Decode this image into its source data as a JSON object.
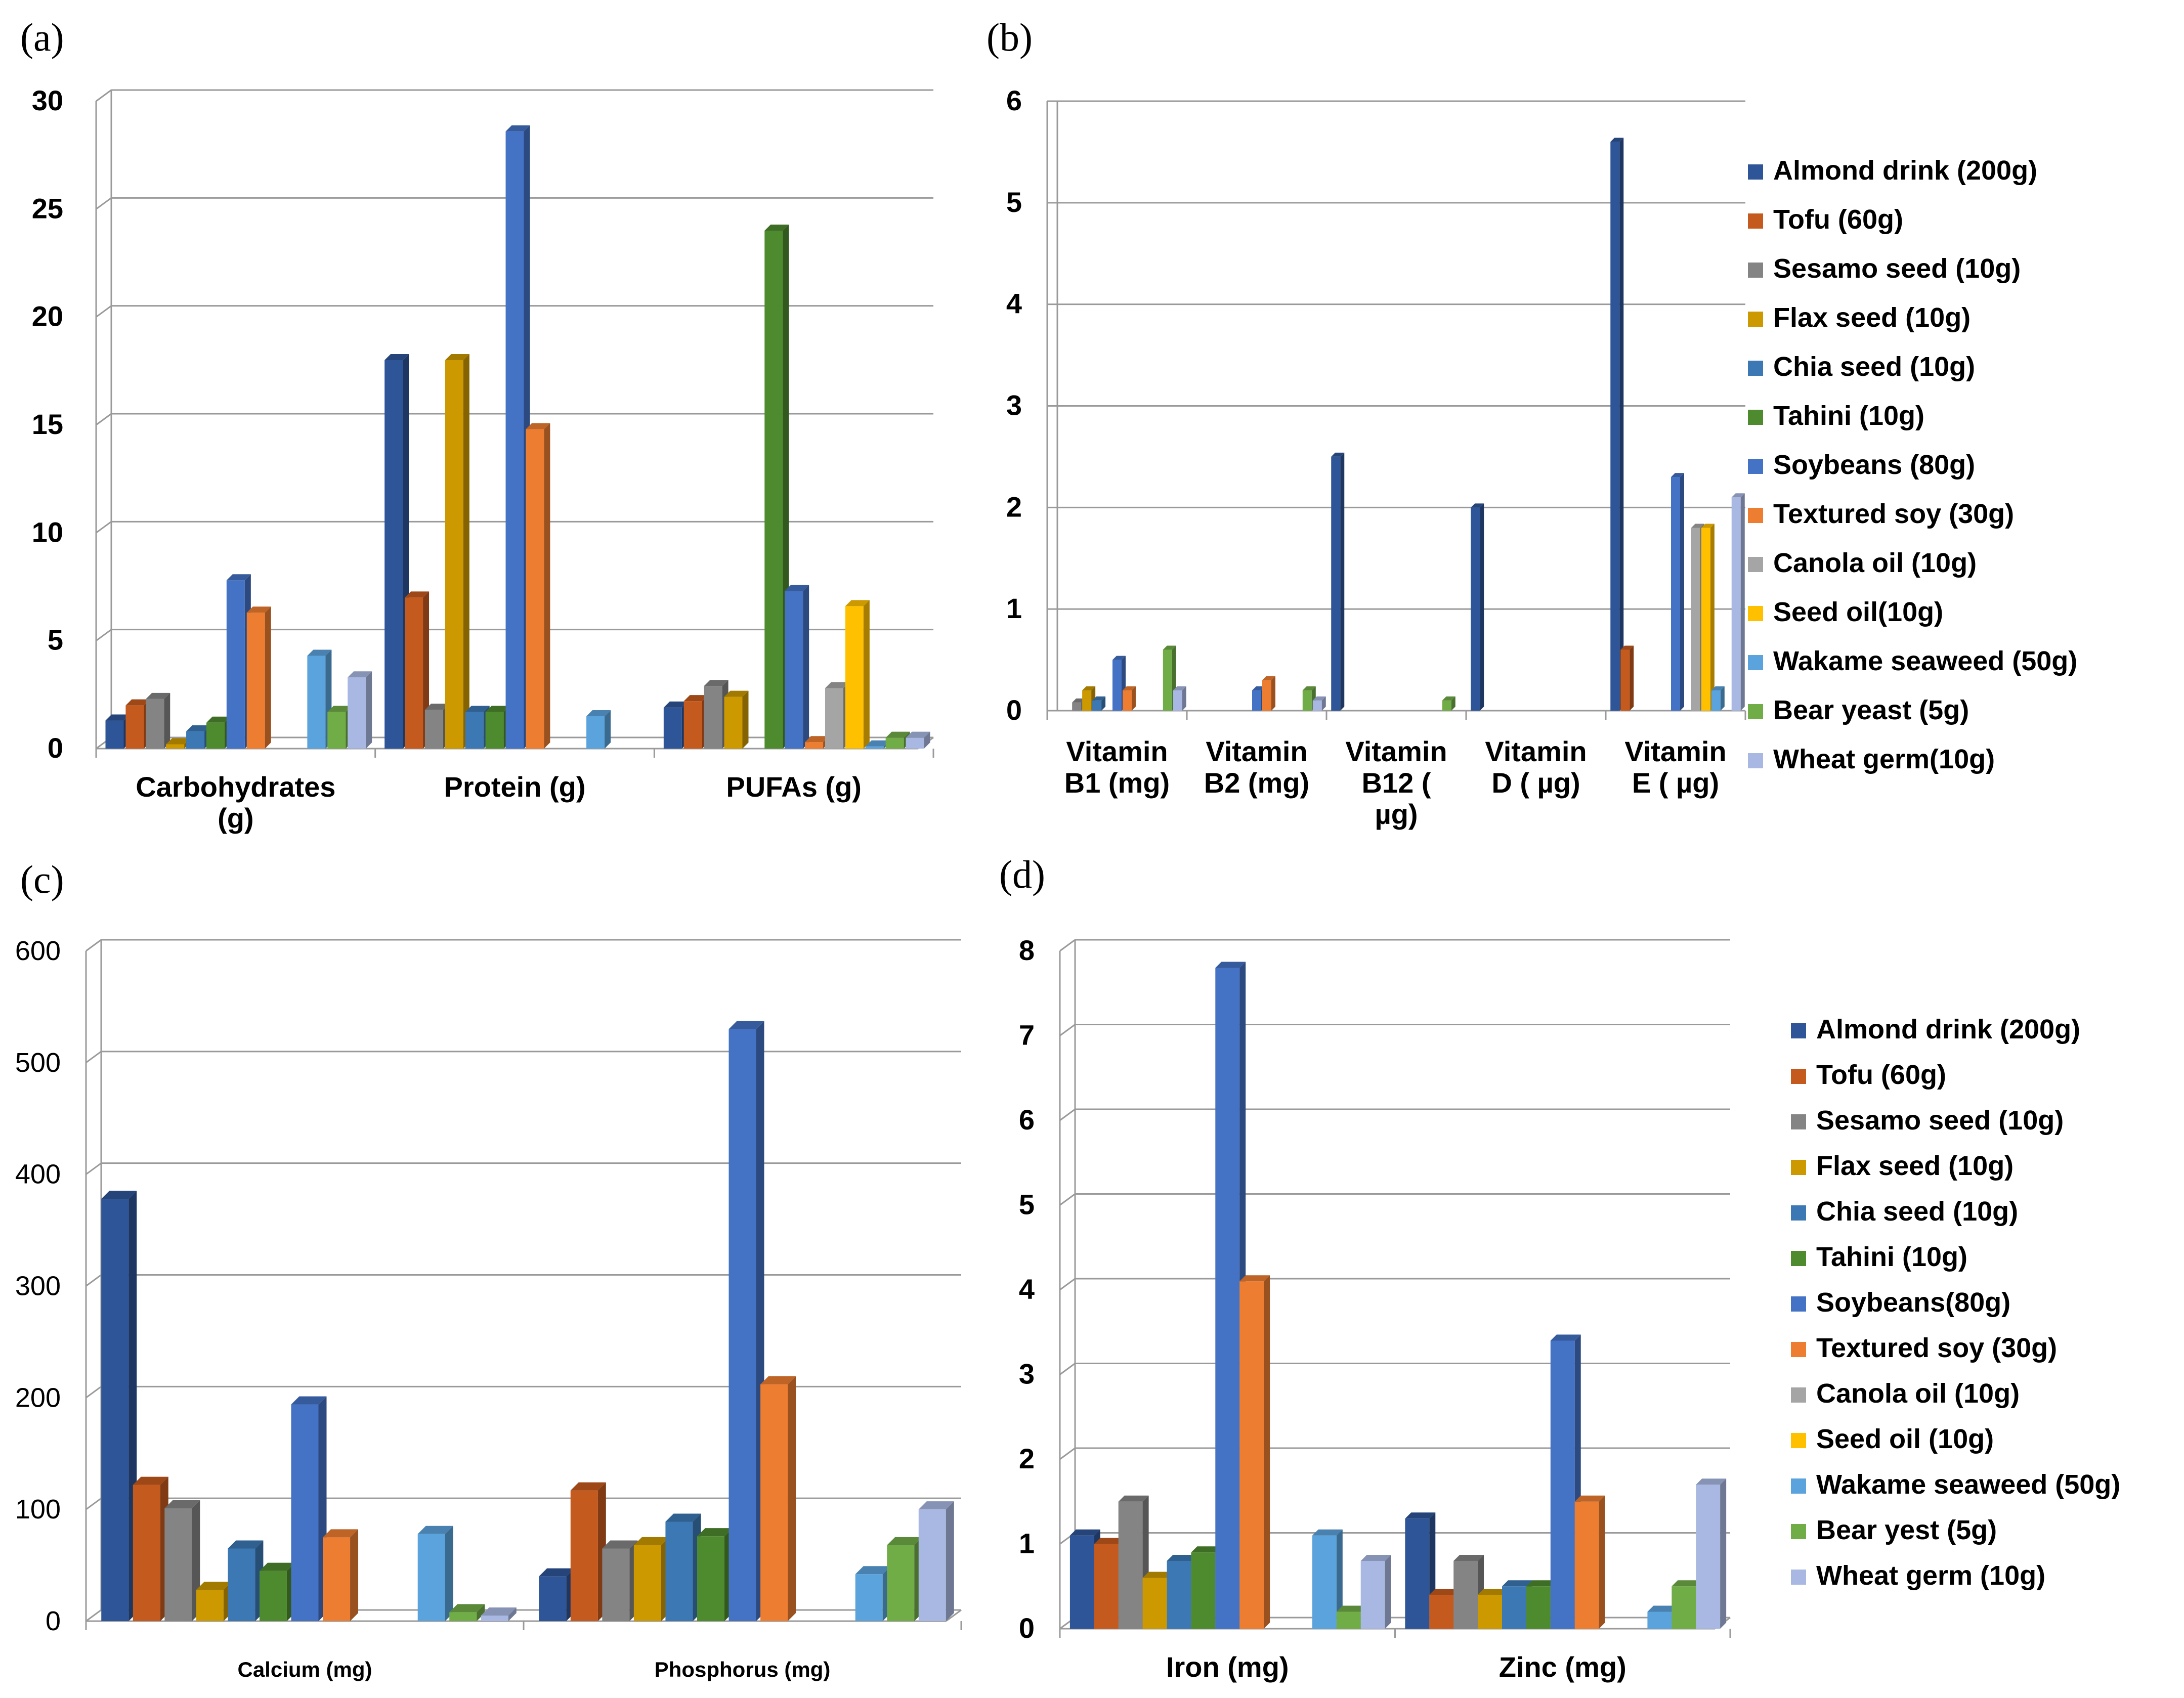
{
  "figure_labels": {
    "a": "(a)",
    "b": "(b)",
    "c": "(c)",
    "d": "(d)"
  },
  "legend_b": [
    "Almond drink (200g)",
    "Tofu (60g)",
    "Sesamo seed (10g)",
    "Flax seed (10g)",
    "Chia seed (10g)",
    "Tahini (10g)",
    "Soybeans (80g)",
    "Textured soy (30g)",
    "Canola oil (10g)",
    "Seed oil(10g)",
    "Wakame seaweed (50g)",
    "Bear yeast (5g)",
    "Wheat germ(10g)"
  ],
  "legend_d": [
    "Almond drink (200g)",
    "Tofu (60g)",
    "Sesamo seed (10g)",
    "Flax seed (10g)",
    "Chia seed (10g)",
    "Tahini (10g)",
    "Soybeans(80g)",
    "Textured soy (30g)",
    "Canola oil (10g)",
    "Seed oil (10g)",
    "Wakame seaweed (50g)",
    "Bear yest (5g)",
    "Wheat germ (10g)"
  ],
  "colors": [
    "#2e5597",
    "#c55a1e",
    "#848484",
    "#cc9900",
    "#3c78b4",
    "#4e8a2e",
    "#4472c4",
    "#ed7d31",
    "#a5a5a5",
    "#ffc000",
    "#5ba3dc",
    "#70ad47",
    "#a9b8e2"
  ],
  "chart_data": [
    {
      "id": "a",
      "type": "bar",
      "categories": [
        "Carbohydrates (g)",
        "Protein (g)",
        "PUFAs (g)"
      ],
      "category_lines": [
        [
          "Carbohydrates",
          "(g)"
        ],
        [
          "Protein (g)"
        ],
        [
          "PUFAs (g)"
        ]
      ],
      "ylim": [
        0,
        30
      ],
      "yticks": [
        "0",
        "5",
        "10",
        "15",
        "20",
        "25",
        "30"
      ],
      "series_names": [
        "Almond drink (200g)",
        "Tofu (60g)",
        "Sesamo seed (10g)",
        "Flax seed (10g)",
        "Chia seed (10g)",
        "Tahini (10g)",
        "Soybeans (80g)",
        "Textured soy (30g)",
        "Canola oil (10g)",
        "Seed oil(10g)",
        "Wakame seaweed (50g)",
        "Bear yeast (5g)",
        "Wheat germ(10g)"
      ],
      "values": [
        [
          1.3,
          2.0,
          2.3,
          0.2,
          0.8,
          1.2,
          7.8,
          6.3,
          0,
          0,
          4.3,
          1.7,
          3.3
        ],
        [
          18.0,
          7.0,
          1.8,
          18.0,
          1.7,
          1.7,
          28.6,
          14.8,
          0,
          0,
          1.5,
          0,
          0
        ],
        [
          1.9,
          2.2,
          2.9,
          2.4,
          0,
          24.0,
          7.3,
          0.3,
          2.8,
          6.6,
          0.1,
          0.5,
          0.5
        ]
      ]
    },
    {
      "id": "b",
      "type": "bar",
      "categories": [
        "Vitamin B1 (mg)",
        "Vitamin B2 (mg)",
        "Vitamin B12 ( µg)",
        "Vitamin D ( µg)",
        "Vitamin E ( µg)"
      ],
      "category_lines": [
        [
          "Vitamin",
          "B1 (mg)"
        ],
        [
          "Vitamin",
          "B2 (mg)"
        ],
        [
          "Vitamin",
          "B12 (",
          "µg)"
        ],
        [
          "Vitamin",
          "D ( µg)"
        ],
        [
          "Vitamin",
          "E ( µg)"
        ]
      ],
      "ylim": [
        0,
        6
      ],
      "yticks": [
        "0",
        "1",
        "2",
        "3",
        "4",
        "5",
        "6"
      ],
      "series_names": [
        "Almond drink (200g)",
        "Tofu (60g)",
        "Sesamo seed (10g)",
        "Flax seed (10g)",
        "Chia seed (10g)",
        "Tahini (10g)",
        "Soybeans (80g)",
        "Textured soy (30g)",
        "Canola oil (10g)",
        "Seed oil(10g)",
        "Wakame seaweed (50g)",
        "Bear yeast (5g)",
        "Wheat germ(10g)"
      ],
      "values": [
        [
          0,
          0,
          0.08,
          0.2,
          0.1,
          0,
          0.5,
          0.2,
          0,
          0,
          0,
          0.6,
          0.2
        ],
        [
          0,
          0,
          0,
          0,
          0,
          0,
          0.2,
          0.3,
          0,
          0,
          0,
          0.2,
          0.1
        ],
        [
          2.5,
          0,
          0,
          0,
          0,
          0,
          0,
          0,
          0,
          0,
          0,
          0.1,
          0
        ],
        [
          2.0,
          0,
          0,
          0,
          0,
          0,
          0,
          0,
          0,
          0,
          0,
          0,
          0
        ],
        [
          5.6,
          0.6,
          0,
          0,
          0,
          0,
          2.3,
          0,
          1.8,
          1.8,
          0.2,
          0,
          2.1
        ]
      ]
    },
    {
      "id": "c",
      "type": "bar",
      "categories": [
        "Calcium (mg)",
        "Phosphorus (mg)"
      ],
      "category_lines": [
        [
          "Calcium (mg)"
        ],
        [
          "Phosphorus (mg)"
        ]
      ],
      "ylim": [
        0,
        600
      ],
      "yticks": [
        "0",
        "100",
        "200",
        "300",
        "400",
        "500",
        "600"
      ],
      "series_names": [
        "Almond drink (200g)",
        "Tofu (60g)",
        "Sesamo seed (10g)",
        "Flax seed (10g)",
        "Chia seed (10g)",
        "Tahini (10g)",
        "Soybeans(80g)",
        "Textured soy (30g)",
        "Canola oil (10g)",
        "Seed oil (10g)",
        "Wakame seaweed (50g)",
        "Bear yest (5g)",
        "Wheat germ (10g)"
      ],
      "values": [
        [
          378,
          122,
          101,
          28,
          65,
          45,
          194,
          75,
          0,
          0,
          78,
          8,
          5
        ],
        [
          40,
          117,
          65,
          68,
          89,
          76,
          530,
          212,
          0,
          0,
          42,
          68,
          100
        ]
      ]
    },
    {
      "id": "d",
      "type": "bar",
      "categories": [
        "Iron (mg)",
        "Zinc (mg)"
      ],
      "category_lines": [
        [
          "Iron (mg)"
        ],
        [
          "Zinc (mg)"
        ]
      ],
      "ylim": [
        0,
        8
      ],
      "yticks": [
        "0",
        "1",
        "2",
        "3",
        "4",
        "5",
        "6",
        "7",
        "8"
      ],
      "series_names": [
        "Almond drink (200g)",
        "Tofu (60g)",
        "Sesamo seed (10g)",
        "Flax seed (10g)",
        "Chia seed (10g)",
        "Tahini (10g)",
        "Soybeans(80g)",
        "Textured soy (30g)",
        "Canola oil (10g)",
        "Seed oil (10g)",
        "Wakame seaweed (50g)",
        "Bear yest (5g)",
        "Wheat germ (10g)"
      ],
      "values": [
        [
          1.1,
          1.0,
          1.5,
          0.6,
          0.8,
          0.9,
          7.8,
          4.1,
          0,
          0,
          1.1,
          0.2,
          0.8
        ],
        [
          1.3,
          0.4,
          0.8,
          0.4,
          0.5,
          0.5,
          3.4,
          1.5,
          0,
          0,
          0.2,
          0.5,
          1.7
        ]
      ]
    }
  ]
}
